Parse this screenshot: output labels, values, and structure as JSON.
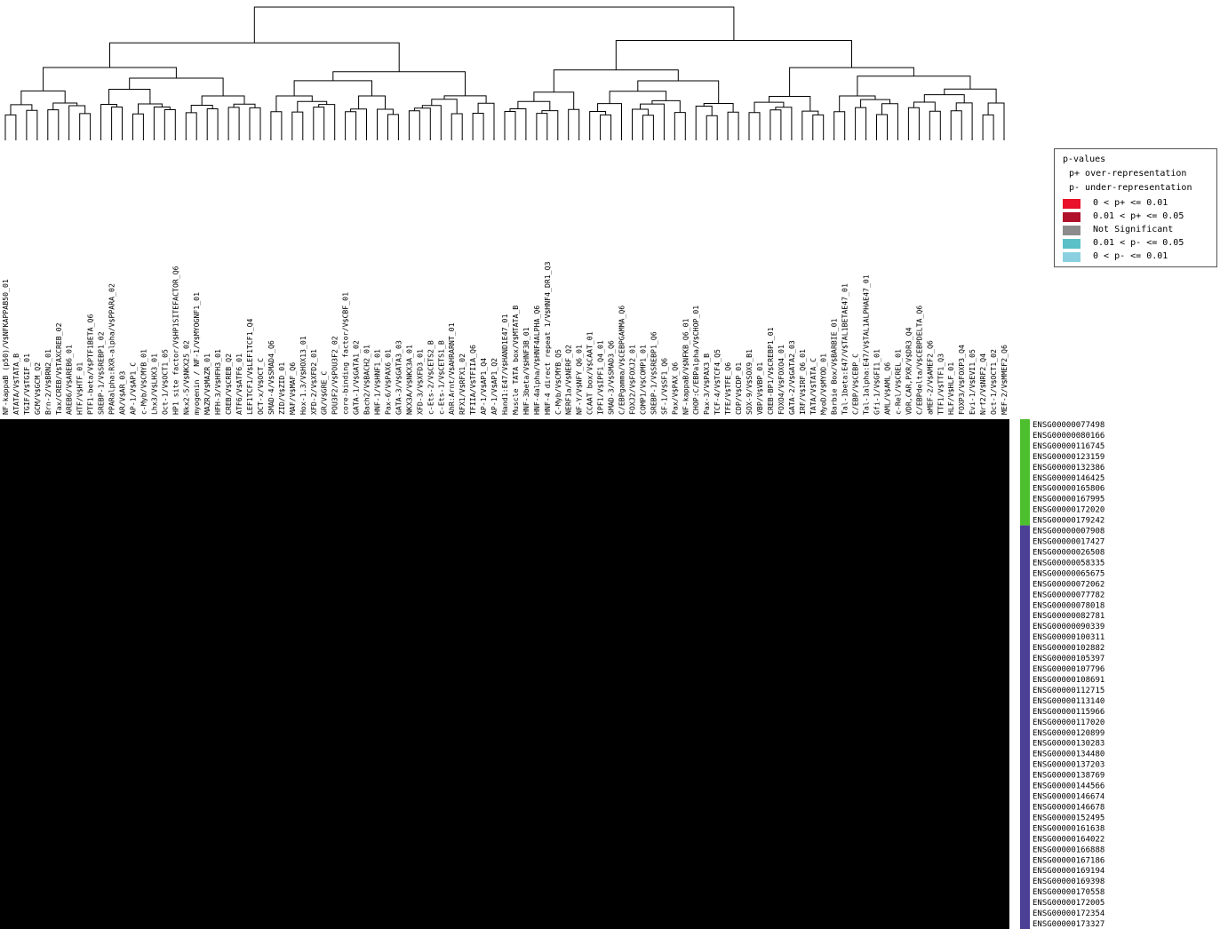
{
  "chart_data": {
    "type": "heatmap",
    "title": "",
    "columns": [
      "NF-kappaB (p50)/V$NFKAPPAB50_01",
      "ATATA/V$TATA_B",
      "TGIF/V$TGIF_01",
      "GCM/V$GCM_Q2",
      "Brn-2/V$BRN2_01",
      "Tax/CREB/V$TAXCREB_02",
      "AREB6/V$AREB6_01",
      "HTF/V$HTF_01",
      "PTF1-beta/V$PTF1BETA_Q6",
      "SREBP-1/V$SREBP1_02",
      "PPARalpha:RXR-alpha/V$PPARA_02",
      "AR/V$AR_03",
      "AP-1/V$AP1_C",
      "c-Myb/V$CMYB_01",
      "Lhx3/V$LHX3_01",
      "Oct-1/V$OCT1_05",
      "HP1 site factor/V$HP1SITEFACTOR_Q6",
      "Nkx2-5/V$NKX25_02",
      "myogenin / NF-1/V$MYOGNF1_01",
      "MAZR/V$MAZR_01",
      "HFH-3/V$HFH3_01",
      "CREB/V$CREB_Q2",
      "ATF6/V$ATF6_01",
      "LEF1TCF1/V$LEF1TCF1_Q4",
      "OCT-x/V$OCT_C",
      "SMAD-4/V$SMAD4_Q6",
      "ZID/V$ZID_01",
      "MAF/V$MAF_Q6",
      "Hox-1.3/V$HOX13_01",
      "XFD-2/V$XFD2_01",
      "GR/V$GRE_C",
      "POU3F2/V$POU3F2_02",
      "core-binding factor/V$CBF_01",
      "GATA-1/V$GATA1_02",
      "Bach2/V$BACH2_01",
      "HNF-1/V$HNF1_01",
      "Pax-6/V$PAX6_01",
      "GATA-3/V$GATA3_03",
      "NKX3A/V$NKX3A_01",
      "XFD-3/V$XFD3_01",
      "c-Ets-2/V$CETS2_B",
      "c-Ets-1/V$CETS1_B",
      "AhR:Arnt/V$AHRARNT_01",
      "RFX1/V$RFX1_02",
      "TFIIA/V$TFIIA_Q6",
      "AP-1/V$AP1_Q4",
      "AP-1/V$AP1_Q2",
      "Hand1:E47/V$HAND1E47_01",
      "Muscle TATA box/V$MTATA_B",
      "HNF-3beta/V$HNF3B_01",
      "HNF-4alpha/V$HNF4ALPHA_Q6",
      "HNF-4 direct repeat 1/V$HNF4_DR1_Q3",
      "C-Myb/V$CMYB_Q5",
      "NERF1a/V$NERF_Q2",
      "NF-Y/V$NFY_Q6_01",
      "CCAAT box/V$CAAT_01",
      "IPF1/V$IPF1_Q4_01",
      "SMAD-3/V$SMAD3_Q6",
      "C/EBPgamma/V$CEBPGAMMA_Q6",
      "FOXJ2/V$FOXJ2_01",
      "COMP1/V$COMP1_01",
      "SREBP-1/V$SREBP1_Q6",
      "SF-1/V$SF1_Q6",
      "Pax/V$PAX_Q6",
      "NF-kappaB/V$NFKB_Q6_01",
      "CHOP:C/EBPalpha/V$CHOP_01",
      "Pax-3/V$PAX3_B",
      "TCF-4/V$TCF4_Q5",
      "TFE/V$TFE_Q6",
      "CDP/V$CDP_01",
      "SOX-9/V$SOX9_B1",
      "VBP/V$VBP_01",
      "CREB-BP1/V$CREBP1_01",
      "FOXO4/V$FOXO4_01",
      "GATA-2/V$GATA2_03",
      "IRF/V$IRF_Q6_01",
      "TATA/V$TATA_C",
      "MyoD/V$MYOD_01",
      "Barbie Box/V$BARBIE_01",
      "Tal-1beta:E47/V$TAL1BETAE47_01",
      "C/EBP/V$CEBP_C",
      "Tal-1alpha:E47/V$TAL1ALPHAE47_01",
      "Gfi-1/V$GFI1_01",
      "AML/V$AML_Q6",
      "c-Rel/V$CREL_01",
      "VDR,CAR,PXR/V$DR3_Q4",
      "C/EBPdelta/V$CEBPDELTA_Q6",
      "aMEF-2/V$AMEF2_Q6",
      "TTF1/V$TTF1_Q3",
      "HLF/V$HLF_01",
      "FOXP3/V$FOXP3_Q4",
      "Evi-1/V$EVI1_05",
      "Nrf2/V$NRF2_Q4",
      "Oct-1/V$OCT1_02",
      "MEF-2/V$MMEF2_Q6"
    ],
    "rows": [
      "ENSG00000077498",
      "ENSG00000080166",
      "ENSG00000116745",
      "ENSG00000123159",
      "ENSG00000132386",
      "ENSG00000146425",
      "ENSG00000165806",
      "ENSG00000167995",
      "ENSG00000172020",
      "ENSG00000179242",
      "ENSG00000007908",
      "ENSG00000017427",
      "ENSG00000026508",
      "ENSG00000058335",
      "ENSG00000065675",
      "ENSG00000072062",
      "ENSG00000077782",
      "ENSG00000078018",
      "ENSG00000082781",
      "ENSG00000090339",
      "ENSG00000100311",
      "ENSG00000102882",
      "ENSG00000105397",
      "ENSG00000107796",
      "ENSG00000108691",
      "ENSG00000112715",
      "ENSG00000113140",
      "ENSG00000115966",
      "ENSG00000117020",
      "ENSG00000120899",
      "ENSG00000130283",
      "ENSG00000134480",
      "ENSG00000137203",
      "ENSG00000138769",
      "ENSG00000144566",
      "ENSG00000146674",
      "ENSG00000146678",
      "ENSG00000152495",
      "ENSG00000161638",
      "ENSG00000164022",
      "ENSG00000166888",
      "ENSG00000167186",
      "ENSG00000169194",
      "ENSG00000169398",
      "ENSG00000170558",
      "ENSG00000172005",
      "ENSG00000172354",
      "ENSG00000173327"
    ],
    "row_groups": [
      {
        "count": 10,
        "color": "#4dbf2e"
      },
      {
        "count": 38,
        "color": "#4b3f96"
      }
    ],
    "colors": {
      "background": "#000000",
      "over_strong": "#e8102a",
      "over_weak": "#b0102a",
      "not_significant": "#8c8c8c",
      "under_weak": "#5bc0c8",
      "under_strong": "#8ad0e0"
    },
    "legend": {
      "title": "p-values",
      "sub1": "p+ over-representation",
      "sub2": "p- under-representation",
      "items": [
        {
          "label": "0 < p+ <= 0.01",
          "color": "#e8102a"
        },
        {
          "label": "0.01 < p+ <= 0.05",
          "color": "#b0102a"
        },
        {
          "label": "Not Significant",
          "color": "#8c8c8c"
        },
        {
          "label": "0.01 < p- <= 0.05",
          "color": "#5bc0c8"
        },
        {
          "label": "0 < p- <= 0.01",
          "color": "#8ad0e0"
        }
      ],
      "position": "top-right"
    }
  }
}
